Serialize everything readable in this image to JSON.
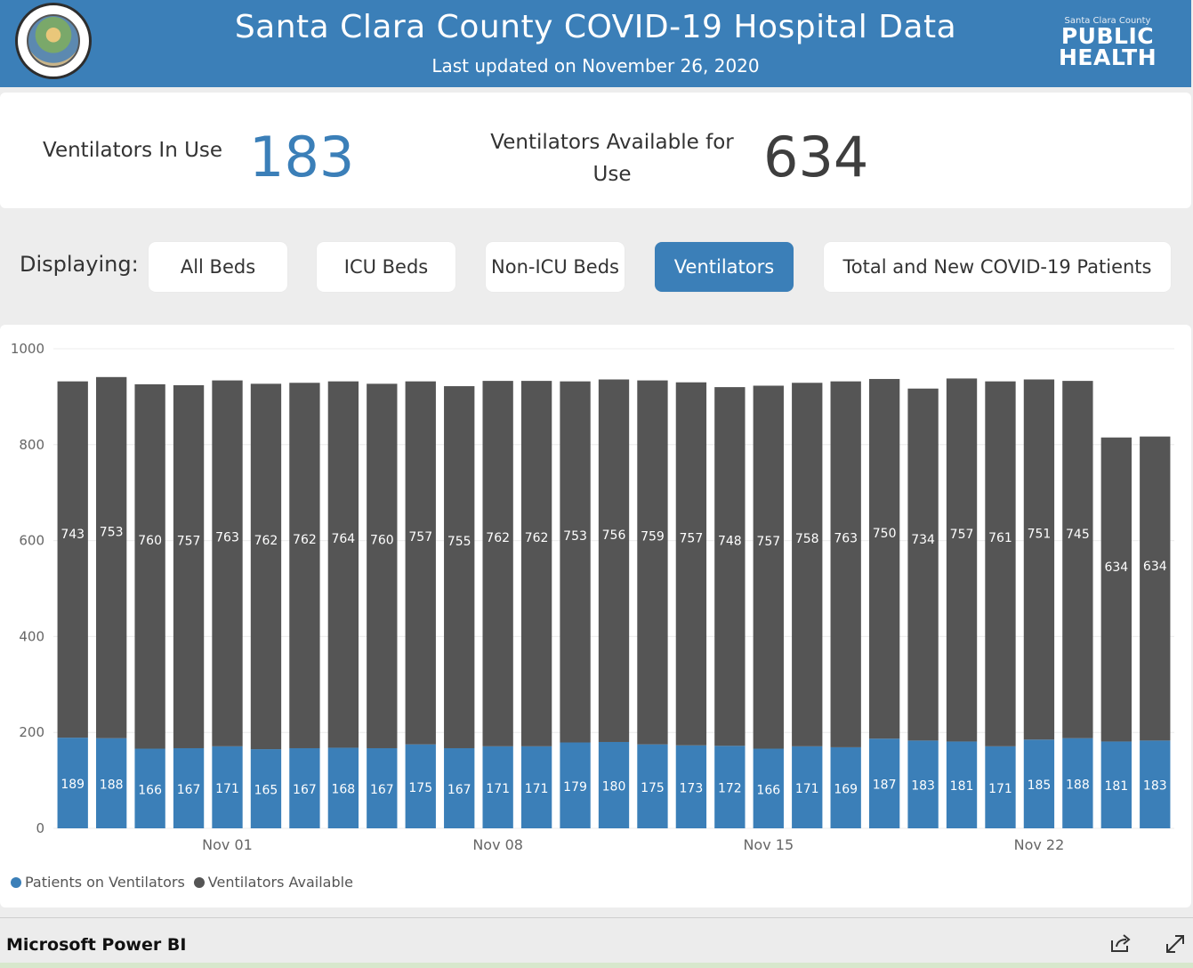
{
  "header": {
    "title": "Santa Clara County COVID-19 Hospital Data",
    "subtitle": "Last updated on November 26, 2020",
    "logo_small": "Santa Clara County",
    "logo_line1": "PUBLIC",
    "logo_line2": "HEALTH"
  },
  "kpis": {
    "in_use_label": "Ventilators In Use",
    "in_use_value": "183",
    "available_label": "Ventilators Available for Use",
    "available_value": "634"
  },
  "filters": {
    "label": "Displaying:",
    "buttons": [
      "All Beds",
      "ICU Beds",
      "Non-ICU Beds",
      "Ventilators",
      "Total and New COVID-19 Patients"
    ],
    "active": "Ventilators"
  },
  "chart_data": {
    "type": "bar",
    "stacked": true,
    "ylim": [
      0,
      1000
    ],
    "yticks": [
      0,
      200,
      400,
      600,
      800,
      1000
    ],
    "xtick_labels": [
      {
        "index": 4,
        "label": "Nov 01"
      },
      {
        "index": 11,
        "label": "Nov 08"
      },
      {
        "index": 18,
        "label": "Nov 15"
      },
      {
        "index": 25,
        "label": "Nov 22"
      }
    ],
    "series": [
      {
        "name": "Patients on Ventilators",
        "color": "#3b7fb8",
        "values": [
          189,
          188,
          166,
          167,
          171,
          165,
          167,
          168,
          167,
          175,
          167,
          171,
          171,
          179,
          180,
          175,
          173,
          172,
          166,
          171,
          169,
          187,
          183,
          181,
          171,
          185,
          188,
          181,
          183
        ]
      },
      {
        "name": "Ventilators Available",
        "color": "#555555",
        "values": [
          743,
          753,
          760,
          757,
          763,
          762,
          762,
          764,
          760,
          757,
          755,
          762,
          762,
          753,
          756,
          759,
          757,
          748,
          757,
          758,
          763,
          750,
          734,
          757,
          761,
          751,
          745,
          634,
          634
        ]
      }
    ],
    "legend_position": "bottom-left",
    "grid": true
  },
  "footer": {
    "brand": "Microsoft Power BI",
    "share_icon": "share-icon",
    "expand_icon": "expand-icon"
  }
}
